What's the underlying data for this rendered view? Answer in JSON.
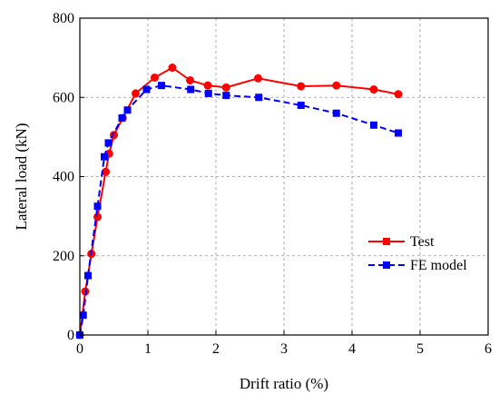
{
  "chart_data": {
    "type": "line",
    "title": "",
    "xlabel": "Drift ratio (%)",
    "ylabel": "Lateral load (kN)",
    "xlim": [
      0,
      6
    ],
    "ylim": [
      0,
      800
    ],
    "xticks": [
      0,
      1,
      2,
      3,
      4,
      5,
      6
    ],
    "yticks": [
      0,
      200,
      400,
      600,
      800
    ],
    "grid": true,
    "legend_position": "bottom-right",
    "series": [
      {
        "name": "Test",
        "color": "#ff0000",
        "line_style": "solid",
        "marker": "circle",
        "x": [
          0,
          0.08,
          0.17,
          0.26,
          0.38,
          0.43,
          0.5,
          0.63,
          0.82,
          1.1,
          1.36,
          1.62,
          1.88,
          2.15,
          2.62,
          3.25,
          3.77,
          4.32,
          4.68
        ],
        "y": [
          0,
          110,
          205,
          298,
          412,
          458,
          505,
          548,
          610,
          650,
          675,
          643,
          630,
          625,
          648,
          628,
          630,
          620,
          608
        ]
      },
      {
        "name": "FE model",
        "color": "#0000ff",
        "line_style": "dashed",
        "marker": "square",
        "x": [
          0,
          0.05,
          0.12,
          0.26,
          0.36,
          0.42,
          0.62,
          0.7,
          0.98,
          1.2,
          1.63,
          1.89,
          2.15,
          2.63,
          3.25,
          3.77,
          4.32,
          4.68
        ],
        "y": [
          0,
          50,
          150,
          325,
          450,
          485,
          548,
          568,
          620,
          630,
          620,
          610,
          605,
          600,
          580,
          560,
          530,
          510
        ]
      }
    ]
  }
}
